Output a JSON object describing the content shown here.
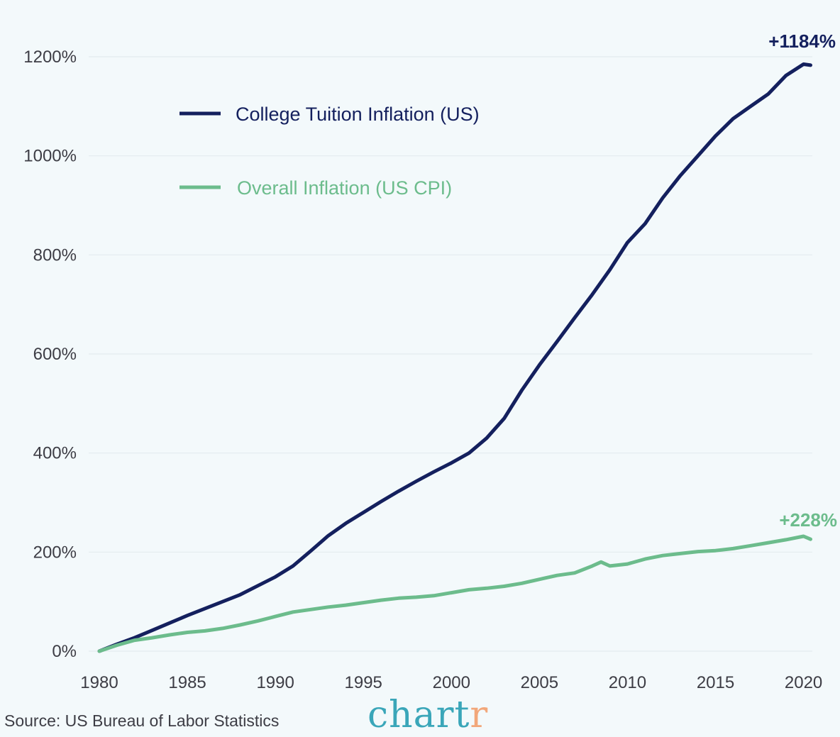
{
  "colors": {
    "background": "#f3f9fb",
    "tuition": "#14205e",
    "cpi": "#6cbc8c",
    "grid": "#e3ebee",
    "brand_main": "#3aa6b9",
    "brand_accent": "#f2a77a"
  },
  "chart_data": {
    "type": "line",
    "xlim": [
      1980,
      2020.5
    ],
    "ylim": [
      0,
      1200
    ],
    "x_ticks": [
      1980,
      1985,
      1990,
      1995,
      2000,
      2005,
      2010,
      2015,
      2020
    ],
    "y_ticks": [
      0,
      200,
      400,
      600,
      800,
      1000,
      1200
    ],
    "x_tick_labels": [
      "1980",
      "1985",
      "1990",
      "1995",
      "2000",
      "2005",
      "2010",
      "2015",
      "2020"
    ],
    "y_tick_labels": [
      "0%",
      "200%",
      "400%",
      "600%",
      "800%",
      "1000%",
      "1200%"
    ],
    "y_unit": "%",
    "grid": true,
    "legend_position": "top-left",
    "series": [
      {
        "name": "College Tuition Inflation (US)",
        "color": "#14205e",
        "end_label": "+1184%",
        "x": [
          1980.0,
          1981.0,
          1982.0,
          1983.0,
          1984.0,
          1985.0,
          1986.0,
          1987.0,
          1988.0,
          1989.0,
          1990.0,
          1991.0,
          1992.0,
          1993.0,
          1994.0,
          1995.0,
          1996.0,
          1997.0,
          1998.0,
          1999.0,
          2000.0,
          2001.0,
          2002.0,
          2003.0,
          2004.0,
          2005.0,
          2006.0,
          2007.0,
          2008.0,
          2009.0,
          2010.0,
          2011.0,
          2012.0,
          2013.0,
          2014.0,
          2015.0,
          2016.0,
          2017.0,
          2018.0,
          2019.0,
          2020.0,
          2020.4
        ],
        "y": [
          0,
          14,
          27,
          42,
          57,
          72,
          86,
          100,
          114,
          132,
          150,
          172,
          202,
          233,
          258,
          280,
          302,
          323,
          343,
          362,
          380,
          400,
          430,
          470,
          527,
          578,
          625,
          673,
          720,
          770,
          825,
          863,
          915,
          960,
          1000,
          1040,
          1075,
          1100,
          1125,
          1162,
          1185,
          1183
        ]
      },
      {
        "name": "Overall Inflation (US CPI)",
        "color": "#6cbc8c",
        "end_label": "+228%",
        "x": [
          1980.0,
          1981.0,
          1982.0,
          1983.0,
          1984.0,
          1985.0,
          1986.0,
          1987.0,
          1988.0,
          1989.0,
          1990.0,
          1991.0,
          1992.0,
          1993.0,
          1994.0,
          1995.0,
          1996.0,
          1997.0,
          1998.0,
          1999.0,
          2000.0,
          2001.0,
          2002.0,
          2003.0,
          2004.0,
          2005.0,
          2006.0,
          2007.0,
          2008.0,
          2008.5,
          2009.0,
          2010.0,
          2011.0,
          2012.0,
          2013.0,
          2014.0,
          2015.0,
          2016.0,
          2017.0,
          2018.0,
          2019.0,
          2020.0,
          2020.4
        ],
        "y": [
          0,
          12,
          22,
          27,
          33,
          38,
          41,
          46,
          53,
          61,
          70,
          79,
          84,
          89,
          93,
          98,
          103,
          107,
          109,
          112,
          118,
          124,
          127,
          131,
          137,
          145,
          153,
          158,
          172,
          180,
          172,
          176,
          186,
          193,
          197,
          201,
          203,
          207,
          213,
          219,
          225,
          232,
          226
        ]
      }
    ]
  },
  "source": "Source: US Bureau of Labor Statistics",
  "brand": {
    "main": "chart",
    "accent": "r"
  }
}
